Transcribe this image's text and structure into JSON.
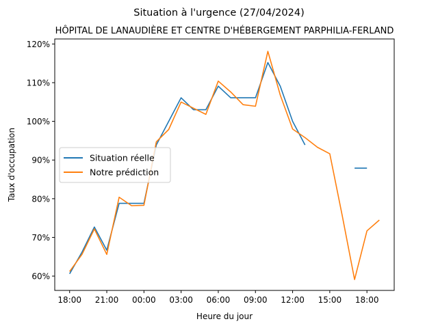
{
  "chart_data": {
    "type": "line",
    "title": "Situation à l'urgence (27/04/2024)",
    "subtitle": "HÔPITAL DE LANAUDIÈRE ET CENTRE D'HÉBERGEMENT PARPHILIA-FERLAND",
    "xlabel": "Heure du jour",
    "ylabel": "Taux d'occupation",
    "x_ticks": [
      {
        "hour": 0,
        "label": "18:00"
      },
      {
        "hour": 3,
        "label": "21:00"
      },
      {
        "hour": 6,
        "label": "00:00"
      },
      {
        "hour": 9,
        "label": "03:00"
      },
      {
        "hour": 12,
        "label": "06:00"
      },
      {
        "hour": 15,
        "label": "09:00"
      },
      {
        "hour": 18,
        "label": "12:00"
      },
      {
        "hour": 21,
        "label": "15:00"
      },
      {
        "hour": 24,
        "label": "18:00"
      }
    ],
    "y_ticks": [
      {
        "value": 60,
        "label": "60%"
      },
      {
        "value": 70,
        "label": "70%"
      },
      {
        "value": 80,
        "label": "80%"
      },
      {
        "value": 90,
        "label": "90%"
      },
      {
        "value": 100,
        "label": "100%"
      },
      {
        "value": 110,
        "label": "110%"
      },
      {
        "value": 120,
        "label": "120%"
      }
    ],
    "xlim": [
      -1.2,
      26.2
    ],
    "ylim": [
      56.3,
      121.3
    ],
    "grid": false,
    "legend": "center-left",
    "series": [
      {
        "name": "Situation réelle",
        "color": "#1f77b4",
        "points": [
          [
            0,
            60.6
          ],
          [
            1,
            66.2
          ],
          [
            2,
            72.7
          ],
          [
            3,
            66.7
          ],
          [
            4,
            78.8
          ],
          [
            5,
            78.8
          ],
          [
            6,
            78.8
          ],
          [
            7,
            93.9
          ],
          [
            8,
            100.0
          ],
          [
            9,
            106.1
          ],
          [
            10,
            103.0
          ],
          [
            11,
            103.0
          ],
          [
            12,
            109.1
          ],
          [
            13,
            106.1
          ],
          [
            14,
            106.1
          ],
          [
            15,
            106.1
          ],
          [
            16,
            115.2
          ],
          [
            17,
            109.1
          ],
          [
            18,
            100.0
          ],
          [
            19,
            93.9
          ],
          null,
          [
            23,
            87.9
          ],
          [
            24,
            87.9
          ]
        ]
      },
      {
        "name": "Notre prédiction",
        "color": "#ff7f0e",
        "points": [
          [
            0,
            61.2
          ],
          [
            1,
            65.6
          ],
          [
            2,
            72.2
          ],
          [
            3,
            65.6
          ],
          [
            4,
            80.4
          ],
          [
            5,
            78.2
          ],
          [
            6,
            78.3
          ],
          [
            7,
            94.7
          ],
          [
            8,
            97.9
          ],
          [
            9,
            105.0
          ],
          [
            10,
            103.4
          ],
          [
            11,
            101.8
          ],
          [
            12,
            110.4
          ],
          [
            13,
            107.6
          ],
          [
            14,
            104.3
          ],
          [
            15,
            103.9
          ],
          [
            16,
            118.1
          ],
          [
            17,
            106.8
          ],
          [
            18,
            98.0
          ],
          [
            19,
            95.8
          ],
          [
            20,
            93.3
          ],
          [
            21,
            91.6
          ],
          [
            22,
            75.7
          ],
          [
            23,
            59.1
          ],
          [
            24,
            71.7
          ],
          [
            25,
            74.5
          ]
        ]
      }
    ]
  }
}
